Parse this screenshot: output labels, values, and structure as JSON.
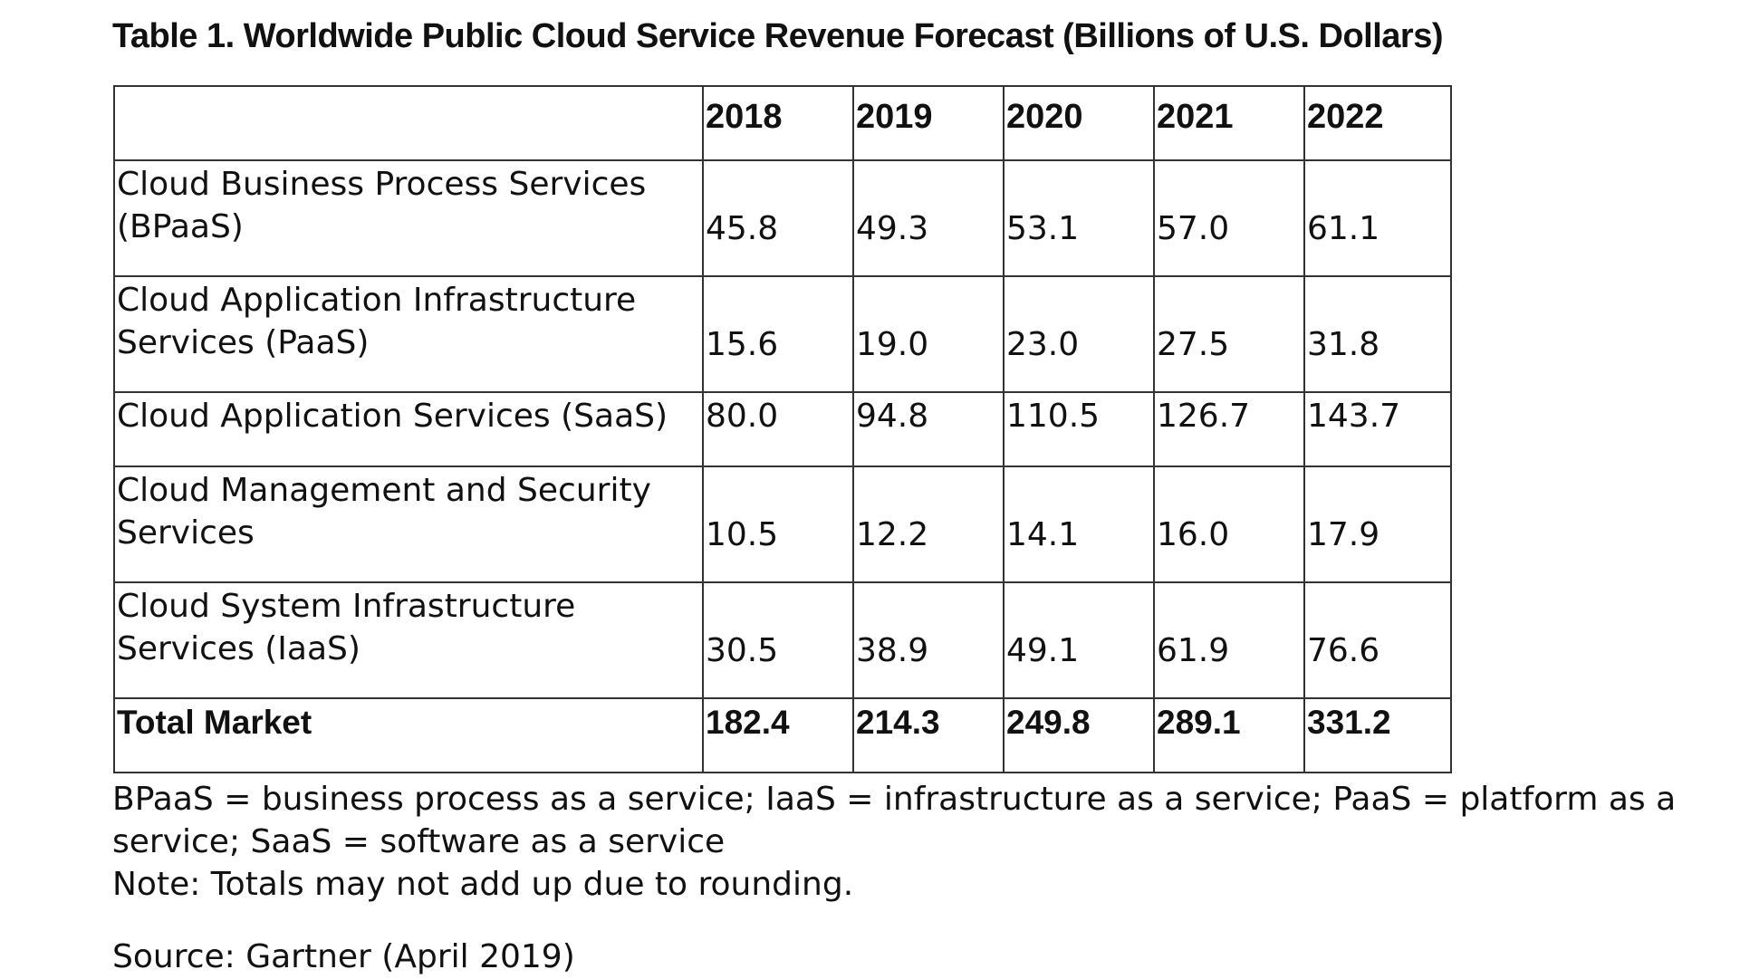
{
  "title": "Table 1. Worldwide Public Cloud Service Revenue Forecast (Billions of U.S. Dollars)",
  "table": {
    "corner": "",
    "years": [
      "2018",
      "2019",
      "2020",
      "2021",
      "2022"
    ],
    "rows": [
      {
        "label": "Cloud Business Process Services (BPaaS)",
        "values": [
          "45.8",
          "49.3",
          "53.1",
          "57.0",
          "61.1"
        ]
      },
      {
        "label": "Cloud Application Infrastructure Services (PaaS)",
        "values": [
          "15.6",
          "19.0",
          "23.0",
          "27.5",
          "31.8"
        ]
      },
      {
        "label": "Cloud Application Services (SaaS)",
        "values": [
          "80.0",
          "94.8",
          "110.5",
          "126.7",
          "143.7"
        ]
      },
      {
        "label": "Cloud Management and Security Services",
        "values": [
          "10.5",
          "12.2",
          "14.1",
          "16.0",
          "17.9"
        ]
      },
      {
        "label": "Cloud System Infrastructure Services (IaaS)",
        "values": [
          "30.5",
          "38.9",
          "49.1",
          "61.9",
          "76.6"
        ]
      }
    ],
    "total": {
      "label": "Total Market",
      "values": [
        "182.4",
        "214.3",
        "249.8",
        "289.1",
        "331.2"
      ]
    }
  },
  "footnotes": {
    "abbreviations": "BPaaS = business process as a service; IaaS = infrastructure as a service; PaaS = platform as a service; SaaS = software as a service",
    "note": "Note: Totals may not add up due to rounding.",
    "source": "Source: Gartner (April 2019)"
  }
}
